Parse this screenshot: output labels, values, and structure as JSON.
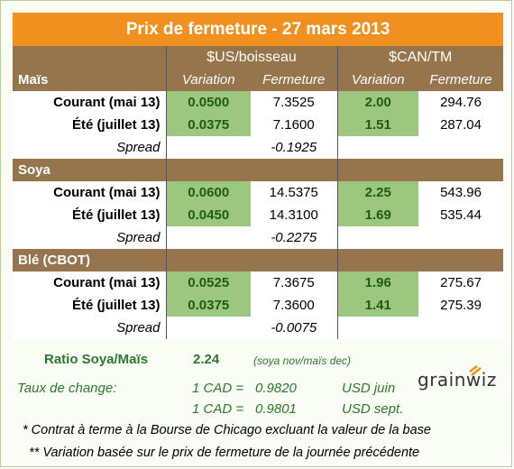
{
  "title": "Prix de fermeture - 27 mars 2013",
  "headers": {
    "usd_unit": "$US/boisseau",
    "cad_unit": "$CAN/TM",
    "variation": "Variation",
    "fermeture": "Fermeture"
  },
  "sections": [
    {
      "name": "Maïs",
      "rows": [
        {
          "label": "Courant (mai 13)",
          "usd_var": "0.0500",
          "usd_close": "7.3525",
          "cad_var": "2.00",
          "cad_close": "294.76"
        },
        {
          "label": "Été (juillet 13)",
          "usd_var": "0.0375",
          "usd_close": "7.1600",
          "cad_var": "1.51",
          "cad_close": "287.04"
        }
      ],
      "spread_label": "Spread",
      "spread_value": "-0.1925"
    },
    {
      "name": "Soya",
      "rows": [
        {
          "label": "Courant (mai 13)",
          "usd_var": "0.0600",
          "usd_close": "14.5375",
          "cad_var": "2.25",
          "cad_close": "543.96"
        },
        {
          "label": "Été (juillet 13)",
          "usd_var": "0.0450",
          "usd_close": "14.3100",
          "cad_var": "1.69",
          "cad_close": "535.44"
        }
      ],
      "spread_label": "Spread",
      "spread_value": "-0.2275"
    },
    {
      "name": "Blé (CBOT)",
      "rows": [
        {
          "label": "Courant (mai 13)",
          "usd_var": "0.0525",
          "usd_close": "7.3675",
          "cad_var": "1.96",
          "cad_close": "275.67"
        },
        {
          "label": "Été (juillet 13)",
          "usd_var": "0.0375",
          "usd_close": "7.3600",
          "cad_var": "1.41",
          "cad_close": "275.39"
        }
      ],
      "spread_label": "Spread",
      "spread_value": "-0.0075"
    }
  ],
  "ratio": {
    "label": "Ratio Soya/Maïs",
    "value": "2.24",
    "note": "(soya nov/maïs dec)"
  },
  "exchange": {
    "label": "Taux de change:",
    "rates": [
      {
        "lhs": "1 CAD =",
        "value": "0.9820",
        "unit": "USD juin"
      },
      {
        "lhs": "1 CAD =",
        "value": "0.9801",
        "unit": "USD sept."
      }
    ]
  },
  "notes": [
    "* Contrat à terme à la Bourse de Chicago excluant la valeur de la base",
    "** Variation basée sur le prix de fermeture de la journée précédente"
  ],
  "logo_text": "grainwiz",
  "colors": {
    "title_bg": "#f1901f",
    "header_bg": "#97754c",
    "variation_bg": "#9bc77e",
    "green_text": "#2b7a2b"
  }
}
